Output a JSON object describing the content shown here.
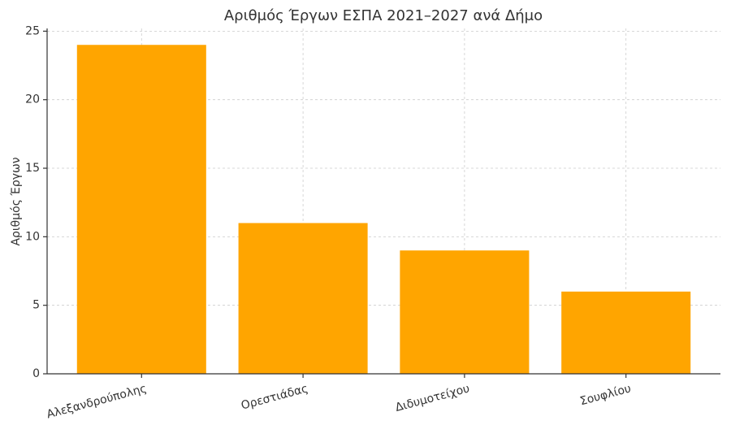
{
  "chart_data": {
    "type": "bar",
    "title": "Αριθμός Έργων ΕΣΠΑ 2021–2027 ανά Δήμο",
    "y_label": "Αριθμός Έργων",
    "categories": [
      "Αλεξανδρούπολης",
      "Ορεστιάδας",
      "Διδυμοτείχου",
      "Σουφλίου"
    ],
    "values": [
      24,
      11,
      9,
      6
    ],
    "color": "#ffa500",
    "ylim": [
      0,
      25.2
    ],
    "yticks": [
      0,
      5,
      10,
      15,
      20,
      25
    ],
    "grid": true
  }
}
